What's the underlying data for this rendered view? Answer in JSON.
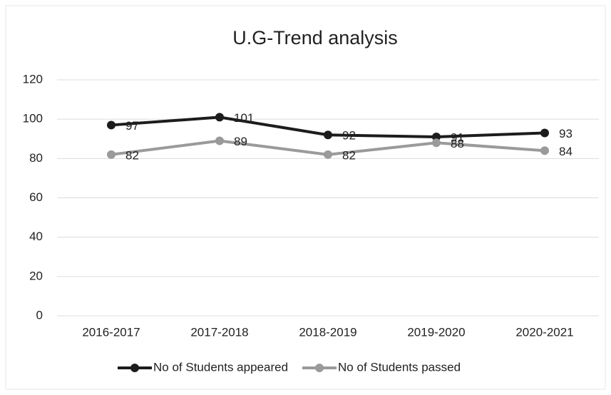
{
  "chart_data": {
    "type": "line",
    "title": "U.G-Trend analysis",
    "categories": [
      "2016-2017",
      "2017-2018",
      "2018-2019",
      "2019-2020",
      "2020-2021"
    ],
    "series": [
      {
        "name": "No of Students appeared",
        "color": "#1c1c1c",
        "values": [
          97,
          101,
          92,
          91,
          93
        ]
      },
      {
        "name": "No of Students passed",
        "color": "#9a9a9a",
        "values": [
          82,
          89,
          82,
          88,
          84
        ]
      }
    ],
    "ylim": [
      0,
      120
    ],
    "yticks": [
      0,
      20,
      40,
      60,
      80,
      100,
      120
    ],
    "grid": true,
    "legend": "bottom"
  }
}
